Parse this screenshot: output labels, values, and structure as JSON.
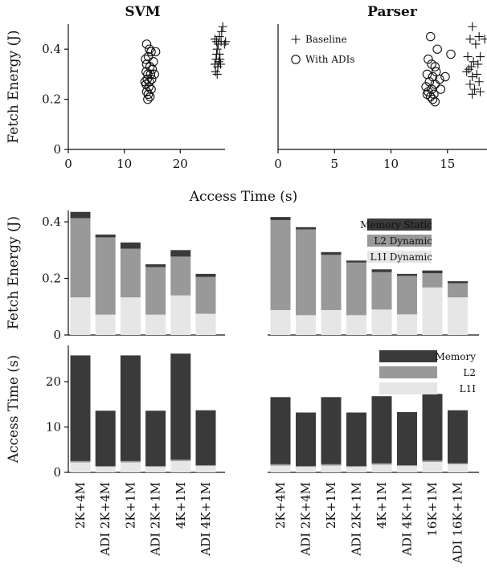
{
  "chart_data": [
    {
      "type": "scatter",
      "title": "SVM",
      "xlabel": "",
      "ylabel": "Fetch Energy (J)",
      "xlim": [
        0,
        28
      ],
      "ylim": [
        0,
        0.5
      ],
      "xticks": [
        0,
        10,
        20
      ],
      "yticks": [
        0,
        0.2,
        0.4
      ],
      "series": [
        {
          "name": "Baseline",
          "marker": "plus",
          "points": [
            [
              26.2,
              0.44
            ],
            [
              26.5,
              0.43
            ],
            [
              26.8,
              0.42
            ],
            [
              27.0,
              0.45
            ],
            [
              27.4,
              0.47
            ],
            [
              27.6,
              0.49
            ],
            [
              27.3,
              0.43
            ],
            [
              27.9,
              0.42
            ],
            [
              28.1,
              0.43
            ],
            [
              26.6,
              0.4
            ],
            [
              27.0,
              0.38
            ],
            [
              26.4,
              0.36
            ],
            [
              26.9,
              0.35
            ],
            [
              26.2,
              0.34
            ],
            [
              27.2,
              0.34
            ],
            [
              26.7,
              0.33
            ],
            [
              26.3,
              0.31
            ],
            [
              26.6,
              0.3
            ],
            [
              27.1,
              0.36
            ],
            [
              26.5,
              0.38
            ]
          ]
        },
        {
          "name": "With ADIs",
          "marker": "circle",
          "points": [
            [
              14.0,
              0.42
            ],
            [
              14.5,
              0.4
            ],
            [
              14.8,
              0.39
            ],
            [
              15.6,
              0.39
            ],
            [
              13.8,
              0.36
            ],
            [
              14.3,
              0.37
            ],
            [
              15.2,
              0.35
            ],
            [
              14.0,
              0.34
            ],
            [
              14.6,
              0.33
            ],
            [
              15.0,
              0.32
            ],
            [
              13.9,
              0.31
            ],
            [
              14.2,
              0.3
            ],
            [
              14.7,
              0.3
            ],
            [
              15.4,
              0.3
            ],
            [
              14.1,
              0.28
            ],
            [
              14.5,
              0.27
            ],
            [
              13.9,
              0.26
            ],
            [
              14.4,
              0.25
            ],
            [
              14.8,
              0.24
            ],
            [
              14.0,
              0.23
            ],
            [
              14.3,
              0.22
            ],
            [
              14.6,
              0.21
            ],
            [
              14.2,
              0.2
            ],
            [
              13.7,
              0.27
            ],
            [
              14.9,
              0.28
            ]
          ]
        }
      ]
    },
    {
      "type": "scatter",
      "title": "Parser",
      "xlabel": "Access Time (s)",
      "ylabel": "",
      "xlim": [
        0,
        18.5
      ],
      "ylim": [
        0,
        0.5
      ],
      "xticks": [
        0,
        5,
        10,
        15
      ],
      "series": [
        {
          "name": "Baseline",
          "marker": "plus",
          "points": [
            [
              17.2,
              0.49
            ],
            [
              17.8,
              0.45
            ],
            [
              18.3,
              0.44
            ],
            [
              17.0,
              0.44
            ],
            [
              17.5,
              0.42
            ],
            [
              17.9,
              0.37
            ],
            [
              18.6,
              0.36
            ],
            [
              16.8,
              0.37
            ],
            [
              17.3,
              0.35
            ],
            [
              17.7,
              0.34
            ],
            [
              17.1,
              0.33
            ],
            [
              16.9,
              0.32
            ],
            [
              17.6,
              0.3
            ],
            [
              17.2,
              0.29
            ],
            [
              17.8,
              0.27
            ],
            [
              17.0,
              0.26
            ],
            [
              17.4,
              0.24
            ],
            [
              17.9,
              0.23
            ],
            [
              17.2,
              0.22
            ],
            [
              16.7,
              0.31
            ]
          ]
        },
        {
          "name": "With ADIs",
          "marker": "circle",
          "points": [
            [
              13.5,
              0.45
            ],
            [
              14.1,
              0.4
            ],
            [
              15.3,
              0.38
            ],
            [
              13.3,
              0.36
            ],
            [
              13.9,
              0.33
            ],
            [
              14.8,
              0.29
            ],
            [
              13.2,
              0.3
            ],
            [
              13.7,
              0.29
            ],
            [
              14.3,
              0.28
            ],
            [
              13.4,
              0.27
            ],
            [
              13.9,
              0.26
            ],
            [
              13.1,
              0.25
            ],
            [
              13.6,
              0.24
            ],
            [
              14.4,
              0.24
            ],
            [
              13.3,
              0.23
            ],
            [
              13.8,
              0.22
            ],
            [
              13.5,
              0.21
            ],
            [
              13.7,
              0.2
            ],
            [
              13.9,
              0.19
            ],
            [
              13.2,
              0.22
            ],
            [
              14.0,
              0.31
            ],
            [
              13.6,
              0.34
            ]
          ]
        }
      ]
    },
    {
      "type": "bar",
      "stacked": true,
      "ylabel": "Fetch Energy (J)",
      "ylim": [
        0,
        0.44
      ],
      "yticks": [
        0,
        0.2,
        0.4
      ],
      "series_names": [
        "L1I Dynamic",
        "L2 Dynamic",
        "Memory Static"
      ],
      "groups": [
        {
          "categories": [
            "2K+4M",
            "ADI 2K+4M",
            "2K+1M",
            "ADI 2K+1M",
            "4K+1M",
            "ADI 4K+1M"
          ],
          "series": [
            {
              "name": "L1I Dynamic",
              "values": [
                0.133,
                0.072,
                0.133,
                0.072,
                0.14,
                0.075
              ]
            },
            {
              "name": "L2 Dynamic",
              "values": [
                0.28,
                0.273,
                0.172,
                0.168,
                0.137,
                0.13
              ]
            },
            {
              "name": "Memory Static",
              "values": [
                0.022,
                0.01,
                0.022,
                0.01,
                0.023,
                0.011
              ]
            }
          ]
        },
        {
          "categories": [
            "2K+4M",
            "ADI 2K+4M",
            "2K+1M",
            "ADI 2K+1M",
            "4K+1M",
            "ADI 4K+1M",
            "16K+1M",
            "ADI 16K+1M"
          ],
          "series": [
            {
              "name": "L1I Dynamic",
              "values": [
                0.088,
                0.07,
                0.088,
                0.07,
                0.09,
                0.073,
                0.168,
                0.133
              ]
            },
            {
              "name": "L2 Dynamic",
              "values": [
                0.318,
                0.303,
                0.195,
                0.186,
                0.132,
                0.136,
                0.05,
                0.05
              ]
            },
            {
              "name": "Memory Static",
              "values": [
                0.011,
                0.008,
                0.01,
                0.007,
                0.01,
                0.007,
                0.01,
                0.007
              ]
            }
          ]
        }
      ],
      "legend": [
        "Memory Static",
        "L2 Dynamic",
        "L1I Dynamic"
      ]
    },
    {
      "type": "bar",
      "stacked": true,
      "ylabel": "Access Time (s)",
      "ylim": [
        0,
        28
      ],
      "yticks": [
        0,
        10,
        20
      ],
      "series_names": [
        "L1I",
        "L2",
        "Memory"
      ],
      "groups": [
        {
          "categories": [
            "2K+4M",
            "ADI 2K+4M",
            "2K+1M",
            "ADI 2K+1M",
            "4K+1M",
            "ADI 4K+1M"
          ],
          "series": [
            {
              "name": "L1I",
              "values": [
                2.2,
                1.2,
                2.2,
                1.2,
                2.5,
                1.4
              ]
            },
            {
              "name": "L2",
              "values": [
                0.3,
                0.2,
                0.3,
                0.2,
                0.3,
                0.2
              ]
            },
            {
              "name": "Memory",
              "values": [
                23.3,
                12.2,
                23.3,
                12.2,
                23.4,
                12.1
              ]
            }
          ]
        },
        {
          "categories": [
            "2K+4M",
            "ADI 2K+4M",
            "2K+1M",
            "ADI 2K+1M",
            "4K+1M",
            "ADI 4K+1M",
            "16K+1M",
            "ADI 16K+1M"
          ],
          "series": [
            {
              "name": "L1I",
              "values": [
                1.5,
                1.2,
                1.5,
                1.2,
                1.7,
                1.4,
                2.3,
                1.8
              ]
            },
            {
              "name": "L2",
              "values": [
                0.3,
                0.2,
                0.3,
                0.2,
                0.3,
                0.2,
                0.3,
                0.2
              ]
            },
            {
              "name": "Memory",
              "values": [
                14.8,
                11.8,
                14.8,
                11.8,
                14.8,
                11.7,
                14.7,
                11.7
              ]
            }
          ]
        }
      ],
      "legend": [
        "Memory",
        "L2",
        "L1I"
      ]
    }
  ],
  "colors": {
    "memory": "#3a3a3a",
    "l2": "#999999",
    "l1": "#e6e6e6",
    "axis": "#111111"
  }
}
